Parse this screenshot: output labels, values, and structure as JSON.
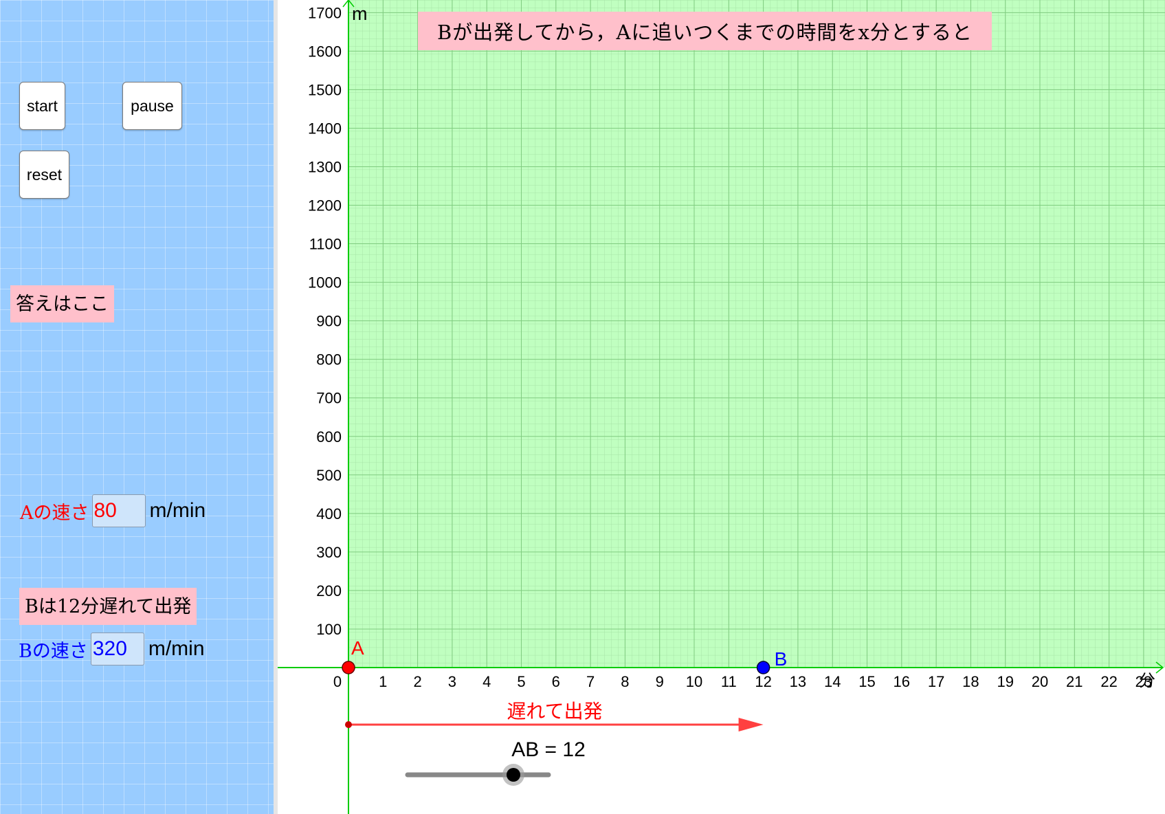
{
  "left_panel": {
    "buttons": {
      "start": "start",
      "pause": "pause",
      "reset": "reset"
    },
    "answer_label": "答えはここ",
    "a_speed_label": "Aの速さ",
    "a_speed_value": "80",
    "b_delay_label": "Bは12分遅れて出発",
    "b_speed_label": "Bの速さ",
    "b_speed_value": "320",
    "unit": "m/min"
  },
  "graph": {
    "title": "Bが出発してから，Aに追いつくまでの時間をx分とすると",
    "y_axis_label": "m",
    "x_axis_label": "分",
    "y_ticks": [
      "100",
      "200",
      "300",
      "400",
      "500",
      "600",
      "700",
      "800",
      "900",
      "1000",
      "1100",
      "1200",
      "1300",
      "1400",
      "1500",
      "1600",
      "1700"
    ],
    "x_ticks": [
      "0",
      "1",
      "2",
      "3",
      "4",
      "5",
      "6",
      "7",
      "8",
      "9",
      "10",
      "11",
      "12",
      "13",
      "14",
      "15",
      "16",
      "17",
      "18",
      "19",
      "20",
      "21",
      "22",
      "23"
    ],
    "point_a_label": "A",
    "point_b_label": "B",
    "point_a_x": 0,
    "point_b_x": 12,
    "delay_arrow_label": "遅れて出発",
    "delay_minutes": 12,
    "slider_label": "AB = 12",
    "slider_value": 12,
    "colors": {
      "background": "#99ccff",
      "graph_area": "#c0ffc0",
      "axis": "#00cc00",
      "point_a": "#ff0000",
      "point_b": "#0000ff",
      "arrow": "#ff4040",
      "pink": "#ffc0cb"
    }
  }
}
